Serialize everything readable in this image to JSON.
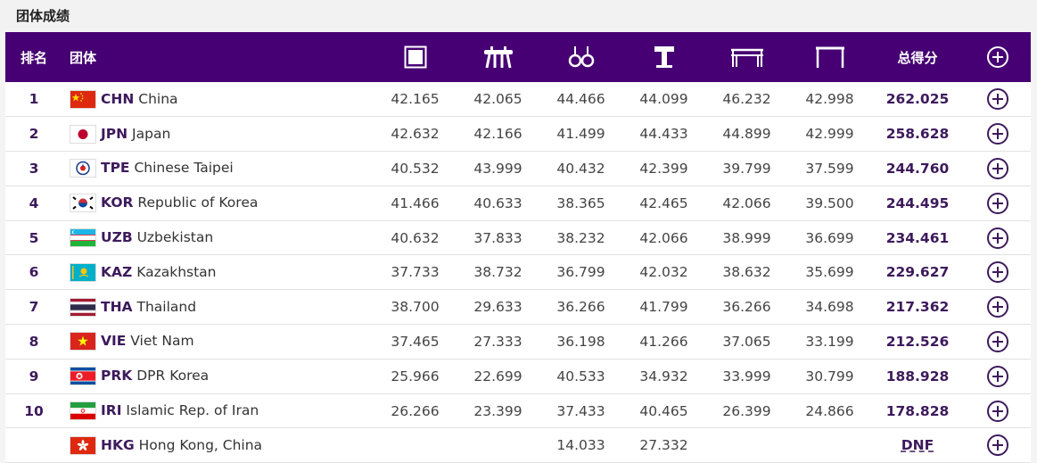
{
  "title": "团体成绩",
  "header": {
    "rank": "排名",
    "team": "团体",
    "total": "总得分",
    "apparatus": [
      {
        "icon": "floor-exercise-icon"
      },
      {
        "icon": "pommel-horse-icon"
      },
      {
        "icon": "rings-icon"
      },
      {
        "icon": "vault-icon"
      },
      {
        "icon": "parallel-bars-icon"
      },
      {
        "icon": "horizontal-bar-icon"
      }
    ]
  },
  "rows": [
    {
      "rank": "1",
      "code": "CHN",
      "name": "China",
      "flag": "china-flag-icon",
      "scores": [
        "42.165",
        "42.065",
        "44.466",
        "44.099",
        "46.232",
        "42.998"
      ],
      "total": "262.025"
    },
    {
      "rank": "2",
      "code": "JPN",
      "name": "Japan",
      "flag": "japan-flag-icon",
      "scores": [
        "42.632",
        "42.166",
        "41.499",
        "44.433",
        "44.899",
        "42.999"
      ],
      "total": "258.628"
    },
    {
      "rank": "3",
      "code": "TPE",
      "name": "Chinese Taipei",
      "flag": "chinese-taipei-flag-icon",
      "scores": [
        "40.532",
        "43.999",
        "40.432",
        "42.399",
        "39.799",
        "37.599"
      ],
      "total": "244.760"
    },
    {
      "rank": "4",
      "code": "KOR",
      "name": "Republic of Korea",
      "flag": "korea-flag-icon",
      "scores": [
        "41.466",
        "40.633",
        "38.365",
        "42.465",
        "42.066",
        "39.500"
      ],
      "total": "244.495"
    },
    {
      "rank": "5",
      "code": "UZB",
      "name": "Uzbekistan",
      "flag": "uzbekistan-flag-icon",
      "scores": [
        "40.632",
        "37.833",
        "38.232",
        "42.066",
        "38.999",
        "36.699"
      ],
      "total": "234.461"
    },
    {
      "rank": "6",
      "code": "KAZ",
      "name": "Kazakhstan",
      "flag": "kazakhstan-flag-icon",
      "scores": [
        "37.733",
        "38.732",
        "36.799",
        "42.032",
        "38.632",
        "35.699"
      ],
      "total": "229.627"
    },
    {
      "rank": "7",
      "code": "THA",
      "name": "Thailand",
      "flag": "thailand-flag-icon",
      "scores": [
        "38.700",
        "29.633",
        "36.266",
        "41.799",
        "36.266",
        "34.698"
      ],
      "total": "217.362"
    },
    {
      "rank": "8",
      "code": "VIE",
      "name": "Viet Nam",
      "flag": "vietnam-flag-icon",
      "scores": [
        "37.465",
        "27.333",
        "36.198",
        "41.266",
        "37.065",
        "33.199"
      ],
      "total": "212.526"
    },
    {
      "rank": "9",
      "code": "PRK",
      "name": "DPR Korea",
      "flag": "dpr-korea-flag-icon",
      "scores": [
        "25.966",
        "22.699",
        "40.533",
        "34.932",
        "33.999",
        "30.799"
      ],
      "total": "188.928"
    },
    {
      "rank": "10",
      "code": "IRI",
      "name": "Islamic Rep. of Iran",
      "flag": "iran-flag-icon",
      "scores": [
        "26.266",
        "23.399",
        "37.433",
        "40.465",
        "26.399",
        "24.866"
      ],
      "total": "178.828"
    },
    {
      "rank": "",
      "code": "HKG",
      "name": "Hong Kong, China",
      "flag": "hong-kong-flag-icon",
      "scores": [
        "",
        "",
        "14.033",
        "27.332",
        "",
        ""
      ],
      "total": "DNF"
    }
  ],
  "colors": {
    "header_bg": "#460073",
    "accent": "#3d1a5c"
  }
}
